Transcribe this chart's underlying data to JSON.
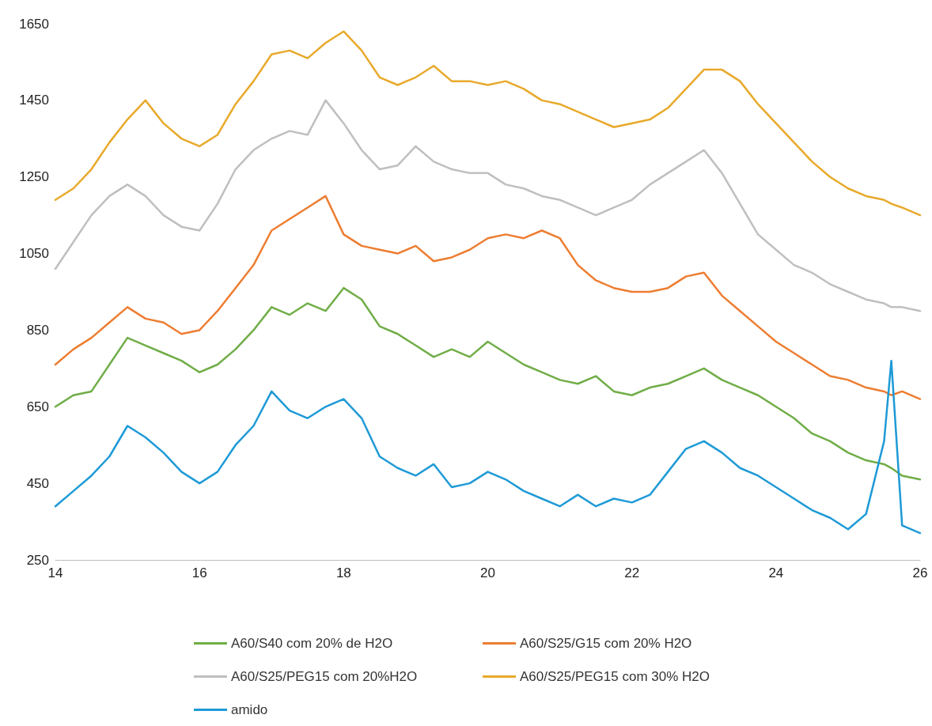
{
  "chart_data": {
    "type": "line",
    "x": [
      14,
      14.25,
      14.5,
      14.75,
      15,
      15.25,
      15.5,
      15.75,
      16,
      16.25,
      16.5,
      16.75,
      17,
      17.25,
      17.5,
      17.75,
      18,
      18.25,
      18.5,
      18.75,
      19,
      19.25,
      19.5,
      19.75,
      20,
      20.25,
      20.5,
      20.75,
      21,
      21.25,
      21.5,
      21.75,
      22,
      22.25,
      22.5,
      22.75,
      23,
      23.25,
      23.5,
      23.75,
      24,
      24.25,
      24.5,
      24.75,
      25,
      25.25,
      25.5,
      25.6,
      25.75,
      26
    ],
    "series": [
      {
        "name": "A60/S40 com 20% de H2O",
        "color": "#70ad47",
        "values": [
          650,
          680,
          690,
          760,
          830,
          810,
          790,
          770,
          740,
          760,
          800,
          850,
          910,
          890,
          920,
          900,
          960,
          930,
          860,
          840,
          810,
          780,
          800,
          780,
          820,
          790,
          760,
          740,
          720,
          710,
          730,
          690,
          680,
          700,
          710,
          730,
          750,
          720,
          700,
          680,
          650,
          620,
          580,
          560,
          530,
          510,
          500,
          490,
          470,
          460
        ]
      },
      {
        "name": "A60/S25/G15 com 20% H2O",
        "color": "#ed7d31",
        "values": [
          760,
          800,
          830,
          870,
          910,
          880,
          870,
          840,
          850,
          900,
          960,
          1020,
          1110,
          1140,
          1170,
          1200,
          1100,
          1070,
          1060,
          1050,
          1070,
          1030,
          1040,
          1060,
          1090,
          1100,
          1090,
          1110,
          1090,
          1020,
          980,
          960,
          950,
          950,
          960,
          990,
          1000,
          940,
          900,
          860,
          820,
          790,
          760,
          730,
          720,
          700,
          690,
          680,
          690,
          670
        ]
      },
      {
        "name": "A60/S25/PEG15 com 20%H2O",
        "color": "#bfbfbf",
        "values": [
          1010,
          1080,
          1150,
          1200,
          1230,
          1200,
          1150,
          1120,
          1110,
          1180,
          1270,
          1320,
          1350,
          1370,
          1360,
          1450,
          1390,
          1320,
          1270,
          1280,
          1330,
          1290,
          1270,
          1260,
          1260,
          1230,
          1220,
          1200,
          1190,
          1170,
          1150,
          1170,
          1190,
          1230,
          1260,
          1290,
          1320,
          1260,
          1180,
          1100,
          1060,
          1020,
          1000,
          970,
          950,
          930,
          920,
          910,
          910,
          900
        ]
      },
      {
        "name": "A60/S25/PEG15 com 30% H2O",
        "color": "#e8a92a",
        "values": [
          1190,
          1220,
          1270,
          1340,
          1400,
          1450,
          1390,
          1350,
          1330,
          1360,
          1440,
          1500,
          1570,
          1580,
          1560,
          1600,
          1630,
          1580,
          1510,
          1490,
          1510,
          1540,
          1500,
          1500,
          1490,
          1500,
          1480,
          1450,
          1440,
          1420,
          1400,
          1380,
          1390,
          1400,
          1430,
          1480,
          1530,
          1530,
          1500,
          1440,
          1390,
          1340,
          1290,
          1250,
          1220,
          1200,
          1190,
          1180,
          1170,
          1150
        ]
      },
      {
        "name": "amido",
        "color": "#1e9ad6",
        "values": [
          390,
          430,
          470,
          520,
          600,
          570,
          530,
          480,
          450,
          480,
          550,
          600,
          690,
          640,
          620,
          650,
          670,
          620,
          520,
          490,
          470,
          500,
          440,
          450,
          480,
          460,
          430,
          410,
          390,
          420,
          390,
          410,
          400,
          420,
          480,
          540,
          560,
          530,
          490,
          470,
          440,
          410,
          380,
          360,
          330,
          370,
          560,
          770,
          340,
          320
        ]
      }
    ],
    "xlim": [
      14,
      26
    ],
    "xticks": [
      14,
      16,
      18,
      20,
      22,
      24,
      26
    ],
    "ylim": [
      250,
      1650
    ],
    "yticks": [
      250,
      450,
      650,
      850,
      1050,
      1250,
      1450,
      1650
    ],
    "legend": "bottom",
    "marker": "none",
    "line_style": "solid"
  }
}
